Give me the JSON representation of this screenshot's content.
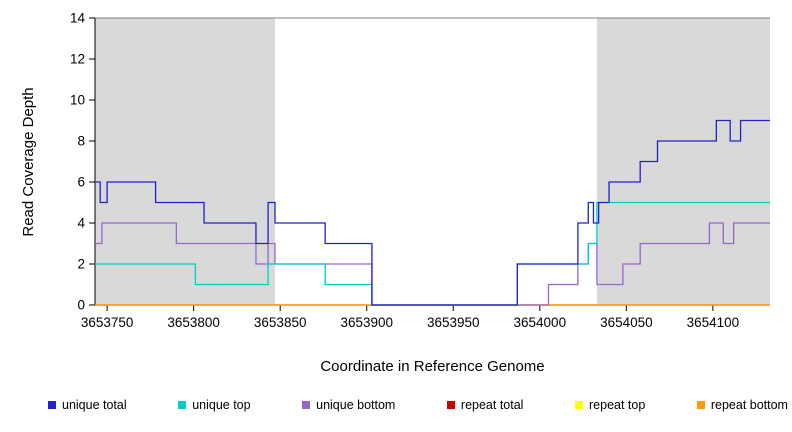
{
  "chart_data": {
    "type": "line",
    "step": true,
    "title": "",
    "xlabel": "Coordinate in Reference Genome",
    "ylabel": "Read Coverage Depth",
    "xlim": [
      3653743,
      3654133
    ],
    "ylim": [
      0,
      14
    ],
    "xticks": [
      3653750,
      3653800,
      3653850,
      3653900,
      3653950,
      3654000,
      3654050,
      3654100
    ],
    "yticks": [
      0,
      2,
      4,
      6,
      8,
      10,
      12,
      14
    ],
    "grid": false,
    "legend_position": "bottom",
    "shade_color": "#d9d9d9",
    "top_border_color": "#808080",
    "shaded_regions": [
      {
        "x0": 3653743,
        "x1": 3653847
      },
      {
        "x0": 3654033,
        "x1": 3654133
      }
    ],
    "series": [
      {
        "name": "unique total",
        "color": "#2222cc",
        "points": [
          [
            3653743,
            6
          ],
          [
            3653746,
            5
          ],
          [
            3653750,
            6
          ],
          [
            3653778,
            5
          ],
          [
            3653806,
            4
          ],
          [
            3653836,
            3
          ],
          [
            3653843,
            5
          ],
          [
            3653847,
            4
          ],
          [
            3653876,
            3
          ],
          [
            3653903,
            0
          ],
          [
            3653987,
            2
          ],
          [
            3654022,
            4
          ],
          [
            3654028,
            5
          ],
          [
            3654031,
            4
          ],
          [
            3654034,
            5
          ],
          [
            3654040,
            6
          ],
          [
            3654058,
            7
          ],
          [
            3654068,
            8
          ],
          [
            3654102,
            9
          ],
          [
            3654110,
            8
          ],
          [
            3654116,
            9
          ]
        ]
      },
      {
        "name": "unique top",
        "color": "#00cccc",
        "points": [
          [
            3653743,
            2
          ],
          [
            3653801,
            1
          ],
          [
            3653843,
            2
          ],
          [
            3653876,
            1
          ],
          [
            3653903,
            0
          ],
          [
            3653987,
            2
          ],
          [
            3654028,
            3
          ],
          [
            3654033,
            5
          ]
        ]
      },
      {
        "name": "unique bottom",
        "color": "#9966cc",
        "points": [
          [
            3653743,
            3
          ],
          [
            3653747,
            4
          ],
          [
            3653790,
            3
          ],
          [
            3653836,
            2
          ],
          [
            3653843,
            3
          ],
          [
            3653847,
            2
          ],
          [
            3653903,
            0
          ],
          [
            3654005,
            1
          ],
          [
            3654022,
            2
          ],
          [
            3654028,
            3
          ],
          [
            3654033,
            1
          ],
          [
            3654048,
            2
          ],
          [
            3654058,
            3
          ],
          [
            3654098,
            4
          ],
          [
            3654106,
            3
          ],
          [
            3654112,
            4
          ]
        ]
      },
      {
        "name": "repeat total",
        "color": "#cc0000",
        "points": [
          [
            3653743,
            0
          ]
        ]
      },
      {
        "name": "repeat top",
        "color": "#ffff00",
        "points": [
          [
            3653743,
            0
          ]
        ]
      },
      {
        "name": "repeat bottom",
        "color": "#ff9900",
        "points": [
          [
            3653743,
            0
          ]
        ]
      }
    ],
    "draw_order": [
      "repeat total",
      "repeat top",
      "repeat bottom",
      "unique bottom",
      "unique top",
      "unique total"
    ],
    "legend": [
      {
        "label": "unique total",
        "color": "#2222cc"
      },
      {
        "label": "unique top",
        "color": "#00cccc"
      },
      {
        "label": "unique bottom",
        "color": "#9966cc"
      },
      {
        "label": "repeat total",
        "color": "#cc0000"
      },
      {
        "label": "repeat top",
        "color": "#ffff00"
      },
      {
        "label": "repeat bottom",
        "color": "#ff9900"
      }
    ]
  }
}
